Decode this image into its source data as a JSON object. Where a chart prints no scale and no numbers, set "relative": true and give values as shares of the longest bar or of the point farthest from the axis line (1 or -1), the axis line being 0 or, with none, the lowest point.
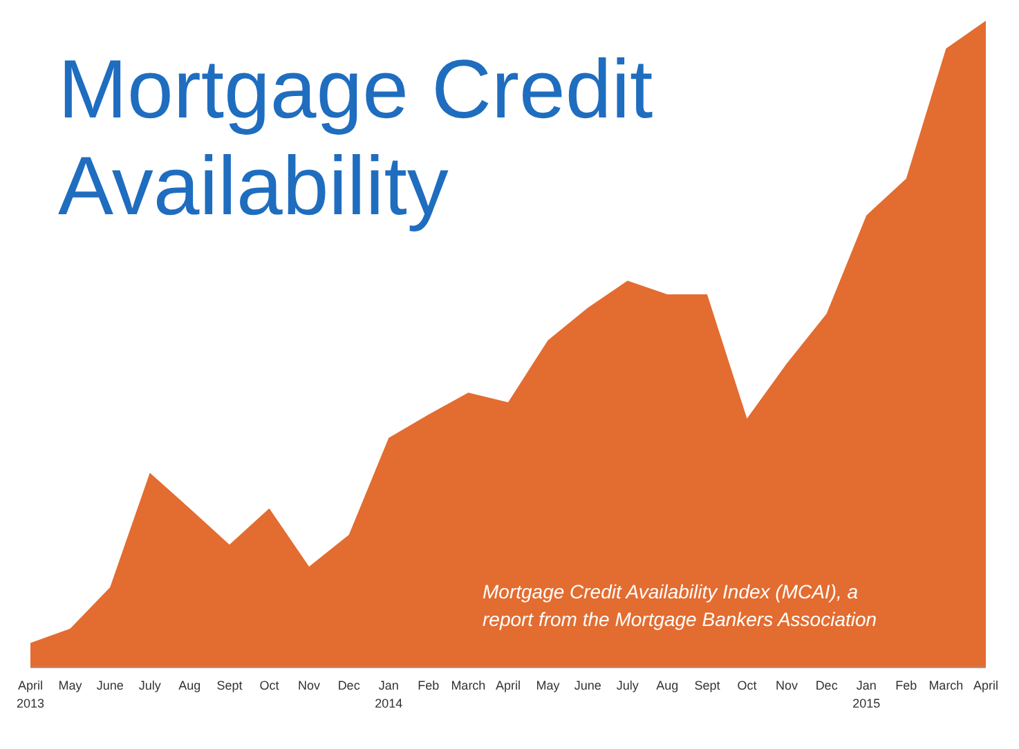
{
  "chart_data": {
    "type": "area",
    "title": "Mortgage Credit Availability",
    "relative": true,
    "categories": [
      "April\n2013",
      "May",
      "June",
      "July",
      "Aug",
      "Sept",
      "Oct",
      "Nov",
      "Dec",
      "Jan\n2014",
      "Feb",
      "March",
      "April",
      "May",
      "June",
      "July",
      "Aug",
      "Sept",
      "Oct",
      "Nov",
      "Dec",
      "Jan\n2015",
      "Feb",
      "March",
      "April"
    ],
    "values": [
      0.038,
      0.06,
      0.124,
      0.301,
      0.246,
      0.19,
      0.246,
      0.156,
      0.205,
      0.355,
      0.391,
      0.425,
      0.41,
      0.506,
      0.556,
      0.598,
      0.577,
      0.577,
      0.385,
      0.47,
      0.547,
      0.699,
      0.756,
      0.957,
      1
    ],
    "color": "#e36c30",
    "annotations": [
      "Mortgage Credit Availability Index (MCAI), a report from the Mortgage Bankers Association"
    ]
  }
}
